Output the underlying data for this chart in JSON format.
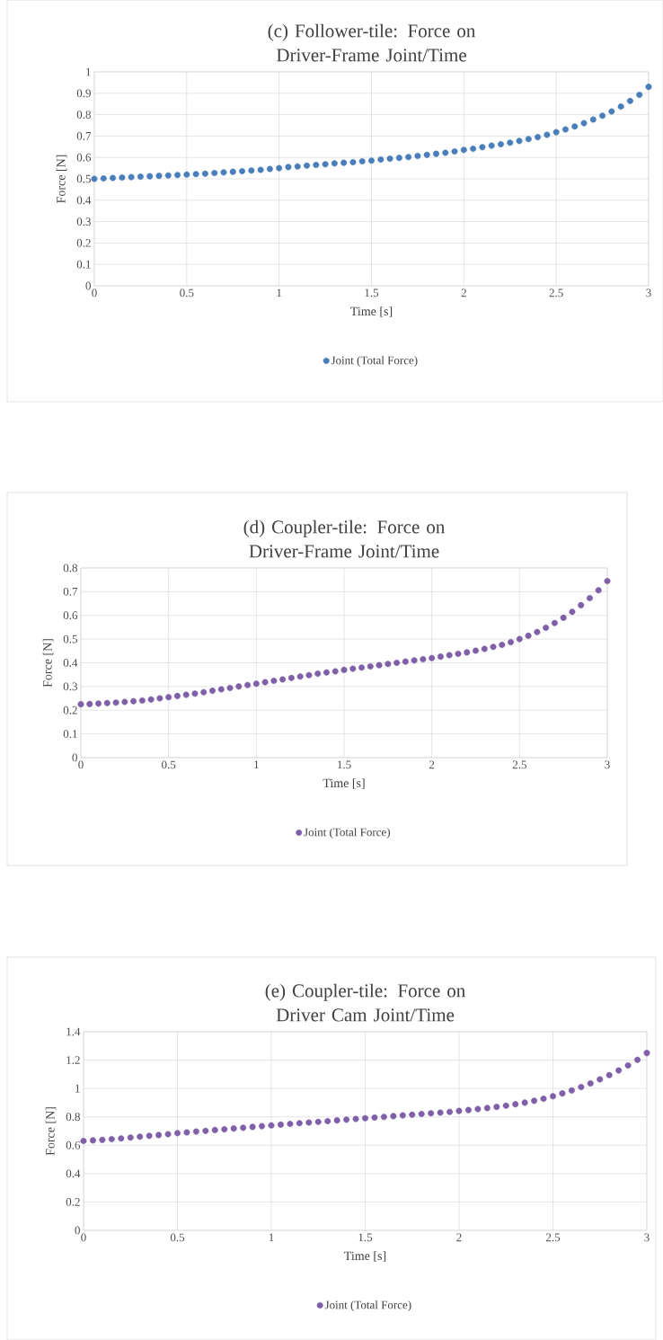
{
  "chart_data": [
    {
      "type": "scatter",
      "title": "(c) Follower-tile: Force on Driver-Frame Joint/Time",
      "xlabel": "Time [s]",
      "ylabel": "Force [N]",
      "x": [
        0,
        0.05,
        0.1,
        0.15,
        0.2,
        0.25,
        0.3,
        0.35,
        0.4,
        0.45,
        0.5,
        0.55,
        0.6,
        0.65,
        0.7,
        0.75,
        0.8,
        0.85,
        0.9,
        0.95,
        1,
        1.05,
        1.1,
        1.15,
        1.2,
        1.25,
        1.3,
        1.35,
        1.4,
        1.45,
        1.5,
        1.55,
        1.6,
        1.65,
        1.7,
        1.75,
        1.8,
        1.85,
        1.9,
        1.95,
        2,
        2.05,
        2.1,
        2.15,
        2.2,
        2.25,
        2.3,
        2.35,
        2.4,
        2.45,
        2.5,
        2.55,
        2.6,
        2.65,
        2.7,
        2.75,
        2.8,
        2.85,
        2.9,
        2.95,
        3
      ],
      "series": [
        {
          "name": "Joint (Total Force)",
          "color": "#4a7ebb",
          "values": [
            0.5,
            0.502,
            0.504,
            0.506,
            0.508,
            0.51,
            0.512,
            0.514,
            0.516,
            0.518,
            0.52,
            0.522,
            0.524,
            0.527,
            0.53,
            0.533,
            0.536,
            0.539,
            0.542,
            0.546,
            0.55,
            0.555,
            0.558,
            0.562,
            0.565,
            0.568,
            0.572,
            0.575,
            0.578,
            0.582,
            0.585,
            0.59,
            0.594,
            0.598,
            0.602,
            0.607,
            0.612,
            0.617,
            0.622,
            0.628,
            0.635,
            0.641,
            0.648,
            0.655,
            0.662,
            0.669,
            0.677,
            0.686,
            0.695,
            0.706,
            0.718,
            0.731,
            0.745,
            0.76,
            0.777,
            0.795,
            0.815,
            0.838,
            0.864,
            0.893,
            0.93
          ]
        }
      ],
      "xlim": [
        0,
        3
      ],
      "ylim": [
        0,
        1
      ],
      "xticks": [
        0,
        0.5,
        1,
        1.5,
        2,
        2.5,
        3
      ],
      "yticks": [
        0,
        0.1,
        0.2,
        0.3,
        0.4,
        0.5,
        0.6,
        0.7,
        0.8,
        0.9,
        1
      ],
      "grid": true,
      "legend": "bottom",
      "marker": "circle"
    },
    {
      "type": "scatter",
      "title": "(d) Coupler-tile: Force on Driver-Frame Joint/Time",
      "xlabel": "Time [s]",
      "ylabel": "Force [N]",
      "x": [
        0,
        0.05,
        0.1,
        0.15,
        0.2,
        0.25,
        0.3,
        0.35,
        0.4,
        0.45,
        0.5,
        0.55,
        0.6,
        0.65,
        0.7,
        0.75,
        0.8,
        0.85,
        0.9,
        0.95,
        1,
        1.05,
        1.1,
        1.15,
        1.2,
        1.25,
        1.3,
        1.35,
        1.4,
        1.45,
        1.5,
        1.55,
        1.6,
        1.65,
        1.7,
        1.75,
        1.8,
        1.85,
        1.9,
        1.95,
        2,
        2.05,
        2.1,
        2.15,
        2.2,
        2.25,
        2.3,
        2.35,
        2.4,
        2.45,
        2.5,
        2.55,
        2.6,
        2.65,
        2.7,
        2.75,
        2.8,
        2.85,
        2.9,
        2.95,
        3
      ],
      "series": [
        {
          "name": "Joint (Total Force)",
          "color": "#7f5fa8",
          "values": [
            0.225,
            0.226,
            0.228,
            0.23,
            0.232,
            0.235,
            0.238,
            0.241,
            0.245,
            0.25,
            0.255,
            0.26,
            0.265,
            0.27,
            0.276,
            0.282,
            0.288,
            0.294,
            0.3,
            0.306,
            0.312,
            0.318,
            0.324,
            0.33,
            0.336,
            0.342,
            0.348,
            0.354,
            0.359,
            0.364,
            0.37,
            0.375,
            0.38,
            0.385,
            0.39,
            0.395,
            0.4,
            0.405,
            0.41,
            0.415,
            0.42,
            0.426,
            0.432,
            0.438,
            0.444,
            0.451,
            0.459,
            0.467,
            0.476,
            0.487,
            0.5,
            0.514,
            0.53,
            0.548,
            0.568,
            0.59,
            0.615,
            0.643,
            0.673,
            0.706,
            0.745
          ]
        }
      ],
      "xlim": [
        0,
        3
      ],
      "ylim": [
        0,
        0.8
      ],
      "xticks": [
        0,
        0.5,
        1,
        1.5,
        2,
        2.5,
        3
      ],
      "yticks": [
        0,
        0.1,
        0.2,
        0.3,
        0.4,
        0.5,
        0.6,
        0.7,
        0.8
      ],
      "grid": true,
      "legend": "bottom",
      "marker": "circle"
    },
    {
      "type": "scatter",
      "title": "(e) Coupler-tile: Force on Driver Cam Joint/Time",
      "xlabel": "Time [s]",
      "ylabel": "Force [N]",
      "x": [
        0,
        0.05,
        0.1,
        0.15,
        0.2,
        0.25,
        0.3,
        0.35,
        0.4,
        0.45,
        0.5,
        0.55,
        0.6,
        0.65,
        0.7,
        0.75,
        0.8,
        0.85,
        0.9,
        0.95,
        1,
        1.05,
        1.1,
        1.15,
        1.2,
        1.25,
        1.3,
        1.35,
        1.4,
        1.45,
        1.5,
        1.55,
        1.6,
        1.65,
        1.7,
        1.75,
        1.8,
        1.85,
        1.9,
        1.95,
        2,
        2.05,
        2.1,
        2.15,
        2.2,
        2.25,
        2.3,
        2.35,
        2.4,
        2.45,
        2.5,
        2.55,
        2.6,
        2.65,
        2.7,
        2.75,
        2.8,
        2.85,
        2.9,
        2.95,
        3
      ],
      "series": [
        {
          "name": "Joint (Total Force)",
          "color": "#7f5fa8",
          "values": [
            0.63,
            0.634,
            0.638,
            0.643,
            0.648,
            0.654,
            0.66,
            0.666,
            0.672,
            0.678,
            0.685,
            0.69,
            0.696,
            0.701,
            0.707,
            0.712,
            0.718,
            0.723,
            0.729,
            0.734,
            0.74,
            0.745,
            0.75,
            0.755,
            0.76,
            0.765,
            0.77,
            0.775,
            0.78,
            0.785,
            0.79,
            0.795,
            0.8,
            0.805,
            0.81,
            0.815,
            0.82,
            0.825,
            0.83,
            0.835,
            0.842,
            0.848,
            0.855,
            0.862,
            0.87,
            0.879,
            0.889,
            0.9,
            0.913,
            0.928,
            0.945,
            0.965,
            0.986,
            1.01,
            1.036,
            1.064,
            1.094,
            1.127,
            1.162,
            1.202,
            1.25
          ]
        }
      ],
      "xlim": [
        0,
        3
      ],
      "ylim": [
        0,
        1.4
      ],
      "xticks": [
        0,
        0.5,
        1,
        1.5,
        2,
        2.5,
        3
      ],
      "yticks": [
        0,
        0.2,
        0.4,
        0.6,
        0.8,
        1,
        1.2,
        1.4
      ],
      "grid": true,
      "legend": "bottom",
      "marker": "circle"
    }
  ]
}
